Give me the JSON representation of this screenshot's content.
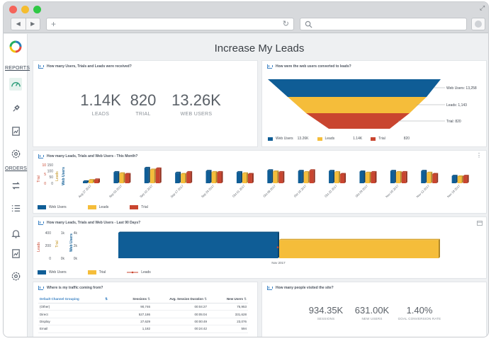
{
  "browser": {
    "controls": [
      "close",
      "minimize",
      "maximize"
    ],
    "back_glyph": "◀",
    "forward_glyph": "▶",
    "new_tab_glyph": "+",
    "reload_glyph": "↻",
    "fullscreen_glyph": "⤢"
  },
  "sidebar": {
    "reports_label": "REPORTS",
    "orders_label": "ORDERS",
    "icons": [
      "speedometer-icon",
      "plug-icon",
      "report-icon",
      "settings-icon",
      "transfer-icon",
      "list-icon",
      "bell-icon",
      "report-icon-2",
      "settings-icon-2"
    ]
  },
  "page_title": "Increase My Leads",
  "kpi_card": {
    "title": "How many Users, Trials and Leads were received?",
    "items": [
      {
        "value": "1.14K",
        "label": "LEADS"
      },
      {
        "value": "820",
        "label": "TRIAL"
      },
      {
        "value": "13.26K",
        "label": "WEB USERS"
      }
    ]
  },
  "funnel_card": {
    "title": "How were the web users converted to leads?",
    "labels": [
      "Web Users: 13,258",
      "Leads: 1,143",
      "Trial: 820"
    ],
    "legend": [
      {
        "name": "Web Users",
        "value": "13.26K"
      },
      {
        "name": "Leads",
        "value": "1.14K"
      },
      {
        "name": "Trial",
        "value": "820"
      }
    ]
  },
  "monthly_card": {
    "title": "How many Leads, Trials and Web Users - This Month?",
    "axis_trial": "Trial",
    "axis_leads": "Leads",
    "axis_web": "Web Users",
    "ticks_web": [
      "150",
      "100",
      "50",
      "0"
    ],
    "ticks_trial": [
      "10",
      "5",
      "0"
    ],
    "legend": [
      "Web Users",
      "Leads",
      "Trial"
    ]
  },
  "days_card": {
    "title": "How many Leads, Trials and Web Users - Last 90 Days?",
    "axis_leads": "Leads",
    "axis_trial": "Trial",
    "axis_web": "Web Users",
    "ticks_web": [
      "4k",
      "2k",
      "0k"
    ],
    "ticks_leads": [
      "400",
      "200",
      "0"
    ],
    "ticks_trial": [
      "1k",
      "0k"
    ],
    "legend": [
      "Web Users",
      "Trial",
      "Leads"
    ]
  },
  "traffic_card": {
    "title": "Where is my traffic coming from?",
    "columns": [
      "Default Channel Grouping",
      "Sessions",
      "Avg. Session Duration",
      "New Users"
    ],
    "rows": [
      [
        "(Other)",
        "90,746",
        "00:04:27",
        "75,953"
      ],
      [
        "Direct",
        "527,186",
        "00:05:04",
        "331,628"
      ],
      [
        "Display",
        "27,629",
        "00:00:49",
        "23,076"
      ],
      [
        "Email",
        "1,182",
        "00:24:42",
        "594"
      ]
    ]
  },
  "visits_card": {
    "title": "How many people visited the site?",
    "items": [
      {
        "value": "934.35K",
        "label": "SESSIONS"
      },
      {
        "value": "631.00K",
        "label": "NEW USERS"
      },
      {
        "value": "1.40%",
        "label": "GOAL CONVERSION RATE"
      }
    ]
  },
  "colors": {
    "web_users": "#0f5d96",
    "leads": "#f5bd3a",
    "trial": "#c9452f",
    "accent": "#3b82c4"
  },
  "chart_data": [
    {
      "type": "bar",
      "title": "How many Leads, Trials and Web Users - This Month?",
      "categories": [
        "Aug 27 2017",
        "Sep 03 2017",
        "Sep 10 2017",
        "Sep 17 2017",
        "Sep 24 2017",
        "Oct 01 2017",
        "Oct 08 2017",
        "Oct 15 2017",
        "Oct 22 2017",
        "Oct 29 2017",
        "Nov 05 2017",
        "Nov 12 2017",
        "Nov 19 2017"
      ],
      "series": [
        {
          "name": "Web Users",
          "values": [
            15,
            90,
            125,
            85,
            100,
            90,
            105,
            100,
            100,
            95,
            100,
            100,
            60
          ]
        },
        {
          "name": "Leads",
          "values": [
            25,
            80,
            110,
            75,
            90,
            80,
            95,
            90,
            90,
            85,
            90,
            85,
            55
          ]
        },
        {
          "name": "Trial",
          "values": [
            2,
            5,
            8,
            6,
            6,
            5,
            6,
            7,
            5,
            6,
            6,
            5,
            4
          ]
        }
      ],
      "ylim_web": [
        0,
        150
      ],
      "ylim_trial": [
        0,
        10
      ],
      "legend": "bottom-left"
    },
    {
      "type": "bar",
      "title": "How many Leads, Trials and Web Users - Last 90 Days?",
      "categories": [
        "Nov 2017"
      ],
      "series": [
        {
          "name": "Web Users",
          "values": [
            13260
          ]
        },
        {
          "name": "Trial",
          "values": [
            820
          ]
        },
        {
          "name": "Leads",
          "values": [
            1143
          ]
        }
      ],
      "legend": "bottom-left"
    },
    {
      "type": "funnel",
      "title": "How were the web users converted to leads?",
      "categories": [
        "Web Users",
        "Leads",
        "Trial"
      ],
      "values": [
        13258,
        1143,
        820
      ],
      "legend": "bottom-left"
    }
  ]
}
